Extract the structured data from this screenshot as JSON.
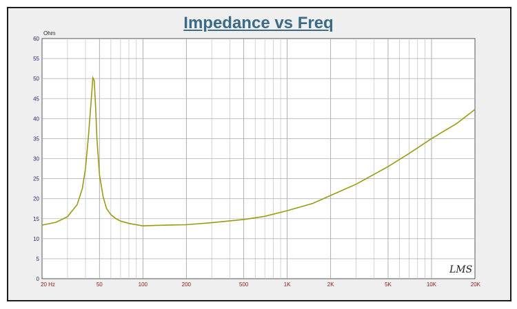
{
  "chart_data": {
    "type": "line",
    "title": "Impedance vs Freq",
    "ylabel": "Ohm",
    "xlabel": "",
    "x_scale": "log",
    "xlim": [
      20,
      20000
    ],
    "ylim": [
      0,
      60
    ],
    "grid": true,
    "y_ticks": [
      "0",
      "5",
      "10",
      "15",
      "20",
      "25",
      "30",
      "35",
      "40",
      "45",
      "50",
      "55",
      "60"
    ],
    "x_ticks": [
      {
        "value": 20,
        "label": "20  Hz"
      },
      {
        "value": 50,
        "label": "50"
      },
      {
        "value": 100,
        "label": "100"
      },
      {
        "value": 200,
        "label": "200"
      },
      {
        "value": 500,
        "label": "500"
      },
      {
        "value": 1000,
        "label": "1K"
      },
      {
        "value": 2000,
        "label": "2K"
      },
      {
        "value": 5000,
        "label": "5K"
      },
      {
        "value": 10000,
        "label": "10K"
      },
      {
        "value": 20000,
        "label": "20K"
      }
    ],
    "series": [
      {
        "color": "#9a9a12",
        "x": [
          20,
          25,
          30,
          35,
          38,
          40,
          42,
          44,
          45,
          46,
          47,
          48,
          50,
          53,
          56,
          60,
          65,
          70,
          80,
          100,
          120,
          150,
          200,
          300,
          500,
          700,
          1000,
          1500,
          2000,
          3000,
          5000,
          7000,
          10000,
          15000,
          20000
        ],
        "y": [
          13.4,
          14.1,
          15.5,
          18.5,
          22.5,
          27.5,
          36.0,
          45.5,
          50.2,
          49.5,
          43.0,
          35.0,
          26.0,
          20.5,
          17.5,
          16.0,
          15.0,
          14.4,
          13.8,
          13.2,
          13.3,
          13.4,
          13.5,
          14.0,
          14.8,
          15.6,
          17.0,
          18.8,
          20.8,
          23.6,
          28.0,
          31.3,
          35.0,
          38.8,
          42.3
        ]
      }
    ]
  },
  "watermark": "LMS"
}
